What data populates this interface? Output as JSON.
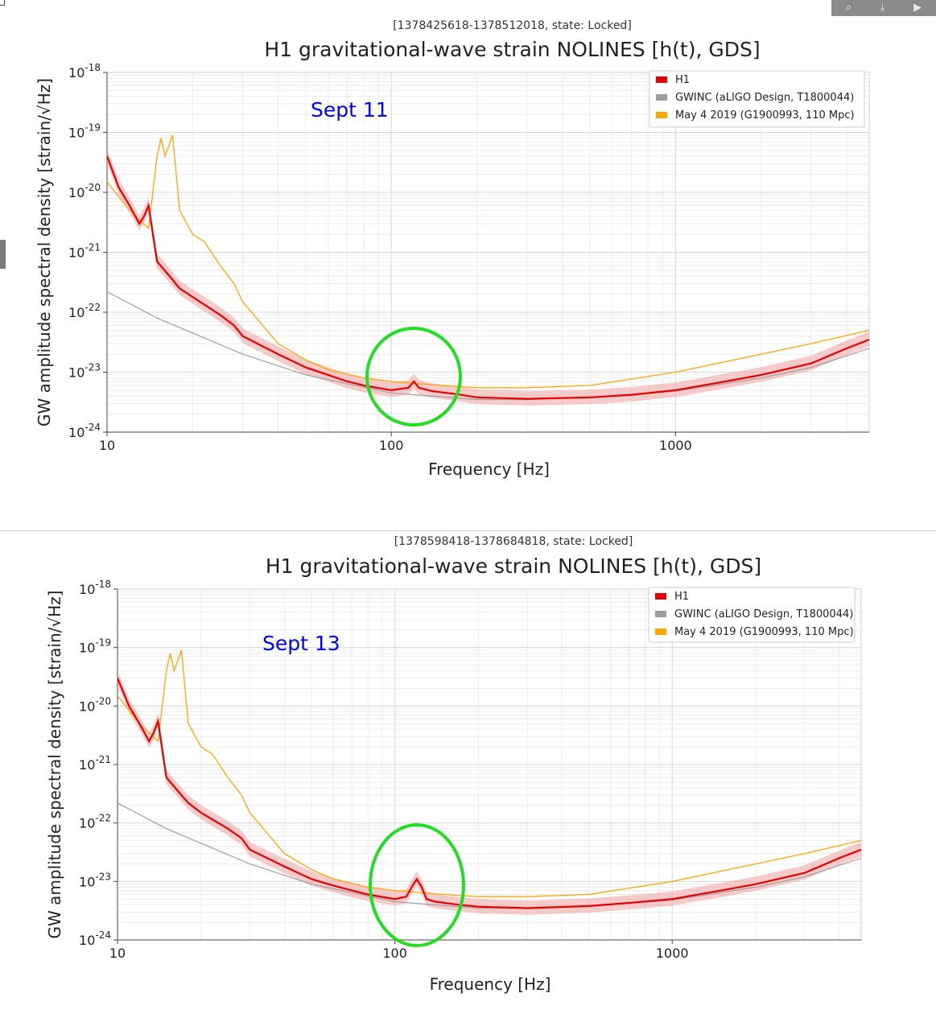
{
  "toolbar": {
    "icons": [
      "zoom-icon",
      "download-icon",
      "play-icon"
    ]
  },
  "chart_data": [
    {
      "type": "line",
      "supertitle": "[1378425618-1378512018, state: Locked]",
      "title": "H1 gravitational-wave strain NOLINES [h(t), GDS]",
      "xlabel": "Frequency [Hz]",
      "ylabel": "GW amplitude spectral density [strain/√Hz]",
      "xscale": "log",
      "yscale": "log",
      "xlim": [
        10,
        4800
      ],
      "ylim": [
        1e-24,
        2e-18
      ],
      "xticks": [
        "10",
        "100",
        "1000"
      ],
      "yticks": [
        "10^-18",
        "10^-19",
        "10^-20",
        "10^-21",
        "10^-22",
        "10^-23",
        "10^-24"
      ],
      "grid": true,
      "legend_position": "top-right",
      "annotation": "Sept 11",
      "highlight_circle_center_hz": 120,
      "colors": {
        "H1": "#e60000",
        "H1_band": "#f3a0a0",
        "GWINC": "#9e9e9e",
        "May2019": "#ffa500",
        "annotation": "#0000ff",
        "circle": "#22dd22"
      },
      "series": [
        {
          "name": "H1",
          "x": [
            10,
            11,
            12,
            13,
            13.5,
            14,
            14.5,
            15,
            17,
            18,
            20,
            25,
            28,
            30,
            40,
            50,
            60,
            70,
            80,
            100,
            115,
            120,
            125,
            140,
            170,
            200,
            300,
            500,
            700,
            1000,
            1500,
            2000,
            3000,
            4000,
            4800
          ],
          "y": [
            4e-20,
            1.2e-20,
            6e-21,
            3e-21,
            4e-21,
            6e-21,
            2e-21,
            7e-22,
            3.5e-22,
            2.5e-22,
            1.8e-22,
            9e-23,
            6e-23,
            4e-23,
            2e-23,
            1.2e-23,
            9e-24,
            7e-24,
            6e-24,
            5e-24,
            5.5e-24,
            7e-24,
            5.5e-24,
            4.8e-24,
            4.3e-24,
            3.8e-24,
            3.6e-24,
            3.8e-24,
            4.2e-24,
            5e-24,
            7e-24,
            9e-24,
            1.4e-23,
            2.5e-23,
            3.5e-23
          ]
        },
        {
          "name": "GWINC (aLIGO Design, T1800044)",
          "x": [
            10,
            15,
            20,
            30,
            50,
            100,
            200,
            300,
            500,
            1000,
            2000,
            3000,
            4800
          ],
          "y": [
            2.2e-22,
            8e-23,
            4.5e-23,
            2e-23,
            9e-24,
            4.5e-24,
            3.5e-24,
            3.5e-24,
            3.8e-24,
            4.8e-24,
            8e-24,
            1.2e-23,
            2.5e-23
          ]
        },
        {
          "name": "May 4 2019 (G1900993, 110 Mpc)",
          "x": [
            10,
            12,
            14,
            15,
            15.5,
            16,
            17,
            18,
            20,
            22,
            25,
            28,
            30,
            40,
            50,
            60,
            80,
            100,
            150,
            200,
            300,
            500,
            1000,
            2000,
            3000,
            4800
          ],
          "y": [
            1.5e-20,
            5e-21,
            2.5e-21,
            4e-20,
            8e-20,
            4e-20,
            9e-20,
            5e-21,
            2e-21,
            1.5e-21,
            6e-22,
            3e-22,
            1.5e-22,
            3e-23,
            1.6e-23,
            1.1e-23,
            8e-24,
            7e-24,
            6e-24,
            5.5e-24,
            5.5e-24,
            6e-24,
            1e-23,
            2e-23,
            3e-23,
            5e-23
          ]
        }
      ],
      "legend": [
        "H1",
        "GWINC (aLIGO Design, T1800044)",
        "May 4 2019 (G1900993, 110 Mpc)"
      ]
    },
    {
      "type": "line",
      "supertitle": "[1378598418-1378684818, state: Locked]",
      "title": "H1 gravitational-wave strain NOLINES [h(t), GDS]",
      "xlabel": "Frequency [Hz]",
      "ylabel": "GW amplitude spectral density [strain/√Hz]",
      "xscale": "log",
      "yscale": "log",
      "xlim": [
        10,
        4800
      ],
      "ylim": [
        1e-24,
        2e-18
      ],
      "xticks": [
        "10",
        "100",
        "1000"
      ],
      "yticks": [
        "10^-18",
        "10^-19",
        "10^-20",
        "10^-21",
        "10^-22",
        "10^-23",
        "10^-24"
      ],
      "grid": true,
      "legend_position": "top-right",
      "annotation": "Sept 13",
      "highlight_circle_center_hz": 120,
      "colors": {
        "H1": "#e60000",
        "H1_band": "#f3a0a0",
        "GWINC": "#9e9e9e",
        "May2019": "#ffa500",
        "annotation": "#0000ff",
        "circle": "#22dd22"
      },
      "series": [
        {
          "name": "H1",
          "x": [
            10,
            11,
            12,
            13,
            13.5,
            14,
            14.5,
            15,
            17,
            18,
            20,
            25,
            28,
            30,
            40,
            50,
            60,
            70,
            80,
            100,
            110,
            115,
            120,
            125,
            130,
            140,
            170,
            200,
            300,
            500,
            700,
            1000,
            1500,
            2000,
            3000,
            4000,
            4800
          ],
          "y": [
            3e-20,
            1e-20,
            5e-21,
            2.5e-21,
            3.5e-21,
            5.5e-21,
            1.8e-21,
            6e-22,
            3e-22,
            2.2e-22,
            1.5e-22,
            8e-23,
            5.5e-23,
            3.5e-23,
            1.8e-23,
            1.1e-23,
            8.5e-24,
            7e-24,
            6e-24,
            5e-24,
            5.5e-24,
            8e-24,
            1.1e-23,
            8e-24,
            5e-24,
            4.5e-24,
            4e-24,
            3.7e-24,
            3.5e-24,
            3.8e-24,
            4.3e-24,
            5e-24,
            7e-24,
            9e-24,
            1.4e-23,
            2.5e-23,
            3.5e-23
          ]
        },
        {
          "name": "GWINC (aLIGO Design, T1800044)",
          "x": [
            10,
            15,
            20,
            30,
            50,
            100,
            200,
            300,
            500,
            1000,
            2000,
            3000,
            4800
          ],
          "y": [
            2.2e-22,
            8e-23,
            4.5e-23,
            2e-23,
            9e-24,
            4.5e-24,
            3.5e-24,
            3.5e-24,
            3.8e-24,
            4.8e-24,
            8e-24,
            1.2e-23,
            2.5e-23
          ]
        },
        {
          "name": "May 4 2019 (G1900993, 110 Mpc)",
          "x": [
            10,
            12,
            14,
            15,
            15.5,
            16,
            17,
            18,
            20,
            22,
            25,
            28,
            30,
            40,
            50,
            60,
            80,
            100,
            150,
            200,
            300,
            500,
            1000,
            2000,
            3000,
            4800
          ],
          "y": [
            1.5e-20,
            5e-21,
            2.5e-21,
            4e-20,
            8e-20,
            4e-20,
            9e-20,
            5e-21,
            2e-21,
            1.5e-21,
            6e-22,
            3e-22,
            1.5e-22,
            3e-23,
            1.6e-23,
            1.1e-23,
            8e-24,
            7e-24,
            6e-24,
            5.5e-24,
            5.5e-24,
            6e-24,
            1e-23,
            2e-23,
            3e-23,
            5e-23
          ]
        }
      ],
      "legend": [
        "H1",
        "GWINC (aLIGO Design, T1800044)",
        "May 4 2019 (G1900993, 110 Mpc)"
      ]
    }
  ]
}
